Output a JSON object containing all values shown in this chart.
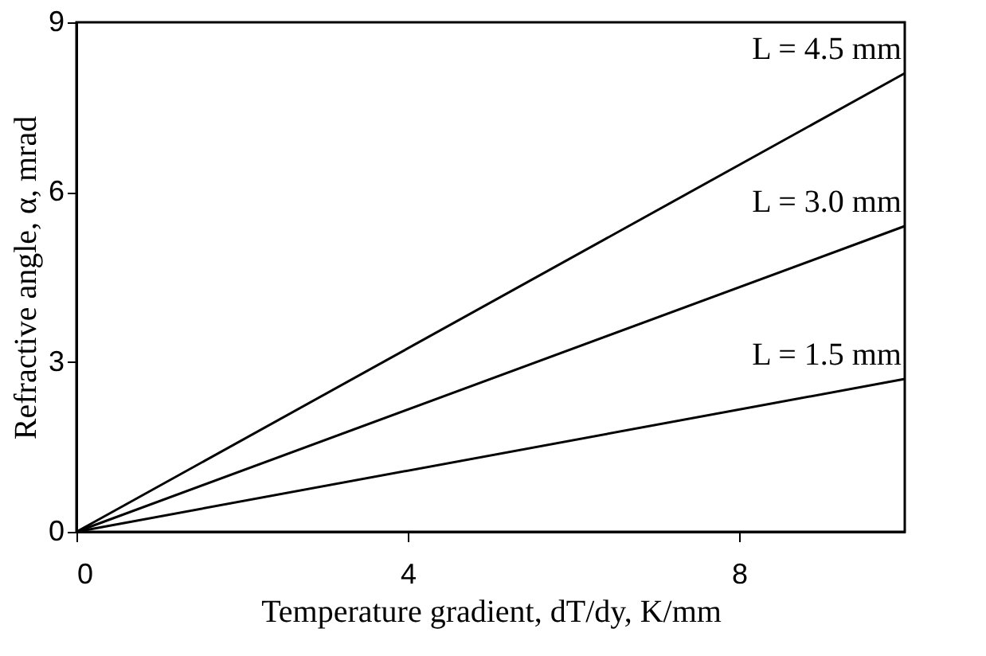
{
  "chart_data": {
    "type": "line",
    "xlabel": "Temperature gradient, dT/dy, K/mm",
    "ylabel": "Refractive angle, α, mrad",
    "x": [
      0,
      10
    ],
    "series": [
      {
        "color": "#000000",
        "values": [
          0,
          8.1
        ]
      },
      {
        "color": "#000000",
        "values": [
          0,
          5.4
        ]
      },
      {
        "color": "#000000",
        "values": [
          0,
          2.7
        ]
      }
    ],
    "xlim": [
      0,
      10
    ],
    "xticks": [
      0,
      4,
      8
    ],
    "ylim": [
      0,
      9
    ],
    "yticks": [
      0,
      3,
      6,
      9
    ],
    "annotations": [
      "L = 4.5 mm",
      "L = 3.0 mm",
      "L = 1.5 mm"
    ],
    "grid": false,
    "legend": false,
    "marker": "none",
    "line_style": "solid"
  }
}
